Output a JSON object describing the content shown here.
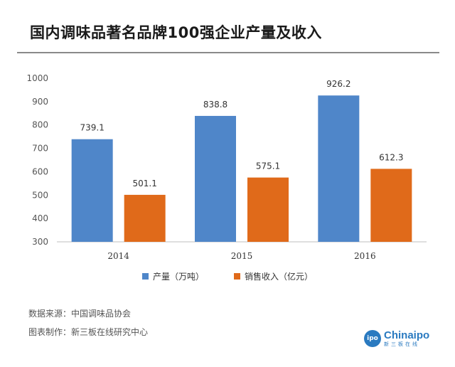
{
  "title": "国内调味品著名品牌100强企业产量及收入",
  "footer": {
    "source": "数据来源：中国调味品协会",
    "maker": "图表制作：新三板在线研究中心"
  },
  "brand": {
    "logo_text": "ipo",
    "name": "Chinaipo",
    "sub": "新三板在线"
  },
  "colors": {
    "series1": "#4f86c9",
    "series2": "#e06a1a"
  },
  "chart_data": {
    "type": "bar",
    "categories": [
      "2014",
      "2015",
      "2016"
    ],
    "series": [
      {
        "name": "产量（万吨）",
        "values": [
          739.1,
          838.8,
          926.2
        ]
      },
      {
        "name": "销售收入（亿元）",
        "values": [
          501.1,
          575.1,
          612.3
        ]
      }
    ],
    "ylim": [
      300,
      1000
    ],
    "yticks": [
      300,
      400,
      500,
      600,
      700,
      800,
      900,
      1000
    ],
    "legend": "bottom",
    "grid": false
  }
}
